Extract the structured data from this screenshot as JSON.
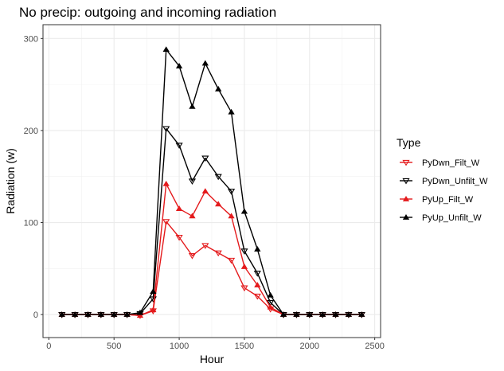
{
  "chart_data": {
    "type": "line",
    "title": "No precip: outgoing and incoming radiation",
    "xlabel": "Hour",
    "ylabel": "Radiation (w)",
    "xlim": [
      -45,
      2545
    ],
    "ylim": [
      -25,
      315
    ],
    "x_ticks": [
      0,
      500,
      1000,
      1500,
      2000,
      2500
    ],
    "x_tick_labels": [
      "0",
      "500",
      "1000",
      "1500",
      "2000",
      "2500"
    ],
    "y_ticks": [
      0,
      100,
      200,
      300
    ],
    "y_tick_labels": [
      "0",
      "100",
      "200",
      "300"
    ],
    "grid": true,
    "legend": {
      "title": "Type",
      "position": "right"
    },
    "x": [
      100,
      200,
      300,
      400,
      500,
      600,
      700,
      800,
      900,
      1000,
      1100,
      1200,
      1300,
      1400,
      1500,
      1600,
      1700,
      1800,
      1900,
      2000,
      2100,
      2200,
      2300,
      2400
    ],
    "series": [
      {
        "name": "PyDwn_Filt_W",
        "color": "#e41a1c",
        "marker": "triangle-down-open",
        "values": [
          0,
          0,
          0,
          0,
          0,
          0,
          -1,
          4,
          101,
          84,
          64,
          75,
          67,
          59,
          29,
          20,
          6,
          0,
          0,
          0,
          0,
          0,
          0,
          0
        ]
      },
      {
        "name": "PyDwn_Unfilt_W",
        "color": "#000000",
        "marker": "triangle-down-open",
        "values": [
          0,
          0,
          0,
          0,
          0,
          0,
          1,
          17,
          202,
          184,
          145,
          170,
          150,
          134,
          69,
          45,
          13,
          0,
          0,
          0,
          0,
          0,
          0,
          0
        ]
      },
      {
        "name": "PyUp_Filt_W",
        "color": "#e41a1c",
        "marker": "triangle-up-filled",
        "values": [
          0,
          0,
          0,
          0,
          0,
          0,
          -1,
          5,
          142,
          115,
          107,
          134,
          120,
          107,
          52,
          32,
          8,
          0,
          0,
          0,
          0,
          0,
          0,
          0
        ]
      },
      {
        "name": "PyUp_Unfilt_W",
        "color": "#000000",
        "marker": "triangle-up-filled",
        "values": [
          0,
          0,
          0,
          0,
          0,
          0,
          2,
          25,
          288,
          270,
          226,
          273,
          245,
          220,
          112,
          71,
          21,
          0,
          0,
          0,
          0,
          0,
          0,
          0
        ]
      }
    ]
  }
}
